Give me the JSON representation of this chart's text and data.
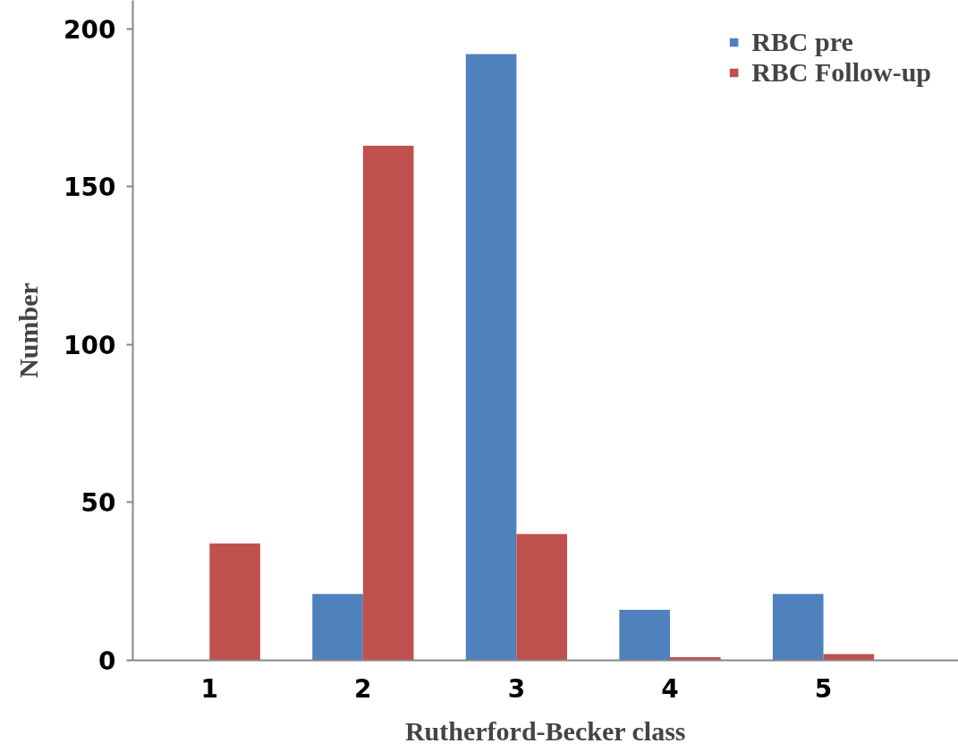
{
  "chart_data": {
    "type": "bar",
    "xlabel": "Rutherford-Becker class",
    "ylabel": "Number",
    "categories": [
      "1",
      "2",
      "3",
      "4",
      "5"
    ],
    "series": [
      {
        "name": "RBC pre",
        "color": "#4f81bd",
        "values": [
          0,
          21,
          192,
          16,
          21
        ]
      },
      {
        "name": "RBC Follow-up",
        "color": "#c0504d",
        "values": [
          37,
          163,
          40,
          1,
          2
        ]
      }
    ],
    "ylim": [
      0,
      209
    ],
    "yticks": [
      0,
      50,
      100,
      150,
      200
    ],
    "legend": "top right"
  }
}
